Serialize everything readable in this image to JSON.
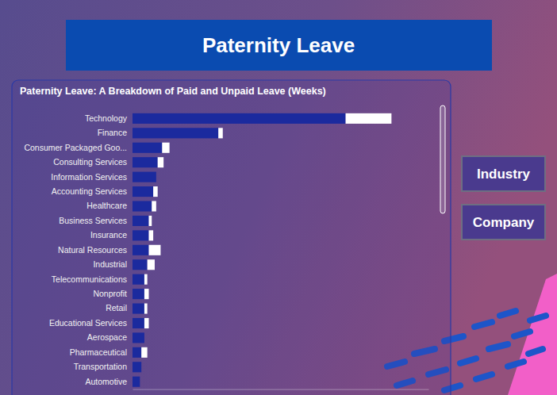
{
  "page": {
    "title": "Paternity Leave",
    "buttons": [
      "Industry",
      "Company"
    ]
  },
  "chart_data": {
    "type": "bar",
    "title": "Paternity Leave: A Breakdown of Paid and Unpaid Leave (Weeks)",
    "orientation": "horizontal",
    "stacked": true,
    "grid": false,
    "tick_labels": "y",
    "categories": [
      "Technology",
      "Finance",
      "Consumer Packaged Goo...",
      "Consulting Services",
      "Information Services",
      "Accounting Services",
      "Healthcare",
      "Business Services",
      "Insurance",
      "Natural Resources",
      "Industrial",
      "Telecommunications",
      "Nonprofit",
      "Retail",
      "Educational Services",
      "Aerospace",
      "Pharmaceutical",
      "Transportation",
      "Automotive"
    ],
    "series": [
      {
        "color": "#1b2a9e",
        "values": [
          14.4,
          5.8,
          2.0,
          1.7,
          1.6,
          1.4,
          1.3,
          1.1,
          1.1,
          1.1,
          1.0,
          0.8,
          0.8,
          0.8,
          0.8,
          0.8,
          0.6,
          0.6,
          0.5
        ]
      },
      {
        "color": "#ffffff",
        "values": [
          3.1,
          0.3,
          0.5,
          0.4,
          0,
          0.3,
          0.3,
          0.2,
          0.3,
          0.8,
          0.5,
          0.2,
          0.3,
          0.2,
          0.3,
          0,
          0.4,
          0,
          0
        ]
      }
    ],
    "xlim": [
      0,
      20
    ],
    "xticks": []
  }
}
